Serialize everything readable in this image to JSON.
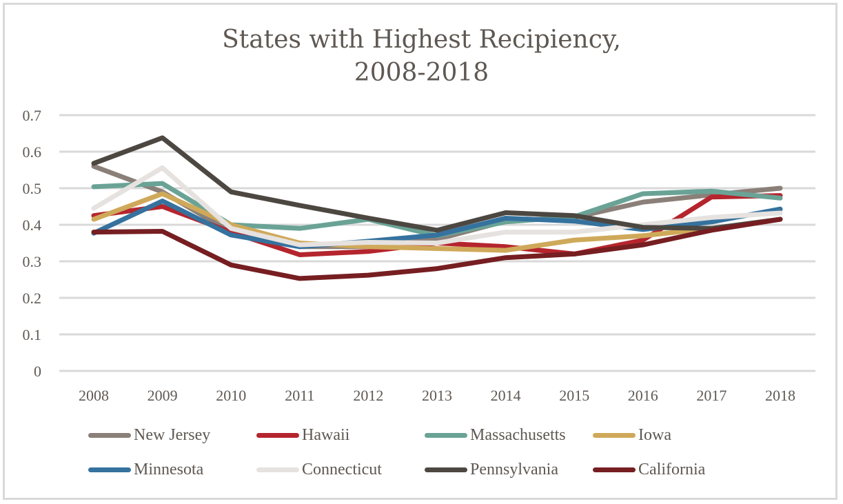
{
  "chart_data": {
    "type": "line",
    "title": "States with Highest Recipiency, 2008-2018",
    "title_lines": [
      "States with Highest Recipiency,",
      "2008-2018"
    ],
    "xlabel": "",
    "ylabel": "",
    "categories": [
      "2008",
      "2009",
      "2010",
      "2011",
      "2012",
      "2013",
      "2014",
      "2015",
      "2016",
      "2017",
      "2018"
    ],
    "ylim": [
      0,
      0.7
    ],
    "yticks": [
      "0",
      "0.1",
      "0.2",
      "0.3",
      "0.4",
      "0.5",
      "0.6",
      "0.7"
    ],
    "grid": true,
    "legend_position": "bottom",
    "series": [
      {
        "name": "New Jersey",
        "color": "#8b8079",
        "values": [
          0.56,
          0.49,
          0.38,
          0.34,
          0.34,
          0.36,
          0.41,
          0.42,
          0.462,
          0.482,
          0.5
        ]
      },
      {
        "name": "Hawaii",
        "color": "#b5252e",
        "values": [
          0.425,
          0.45,
          0.38,
          0.318,
          0.327,
          0.35,
          0.34,
          0.32,
          0.358,
          0.476,
          0.48
        ]
      },
      {
        "name": "Massachusetts",
        "color": "#6aa396",
        "values": [
          0.504,
          0.513,
          0.4,
          0.39,
          0.415,
          0.37,
          0.408,
          0.422,
          0.485,
          0.492,
          0.473
        ]
      },
      {
        "name": "Iowa",
        "color": "#cfa95a",
        "values": [
          0.415,
          0.485,
          0.4,
          0.35,
          0.34,
          0.335,
          0.33,
          0.358,
          0.37,
          0.39,
          0.415
        ]
      },
      {
        "name": "Minnesota",
        "color": "#35729e",
        "values": [
          0.377,
          0.465,
          0.372,
          0.34,
          0.355,
          0.372,
          0.418,
          0.41,
          0.387,
          0.408,
          0.443
        ]
      },
      {
        "name": "Connecticut",
        "color": "#e6e2e0",
        "values": [
          0.445,
          0.556,
          0.39,
          0.345,
          0.352,
          0.35,
          0.38,
          0.38,
          0.4,
          0.42,
          0.432
        ]
      },
      {
        "name": "Pennsylvania",
        "color": "#4c4741",
        "values": [
          0.568,
          0.638,
          0.49,
          0.453,
          0.418,
          0.385,
          0.433,
          0.425,
          0.393,
          0.39,
          0.415
        ]
      },
      {
        "name": "California",
        "color": "#761e21",
        "values": [
          0.38,
          0.382,
          0.29,
          0.253,
          0.262,
          0.28,
          0.31,
          0.32,
          0.345,
          0.385,
          0.415
        ]
      }
    ]
  }
}
